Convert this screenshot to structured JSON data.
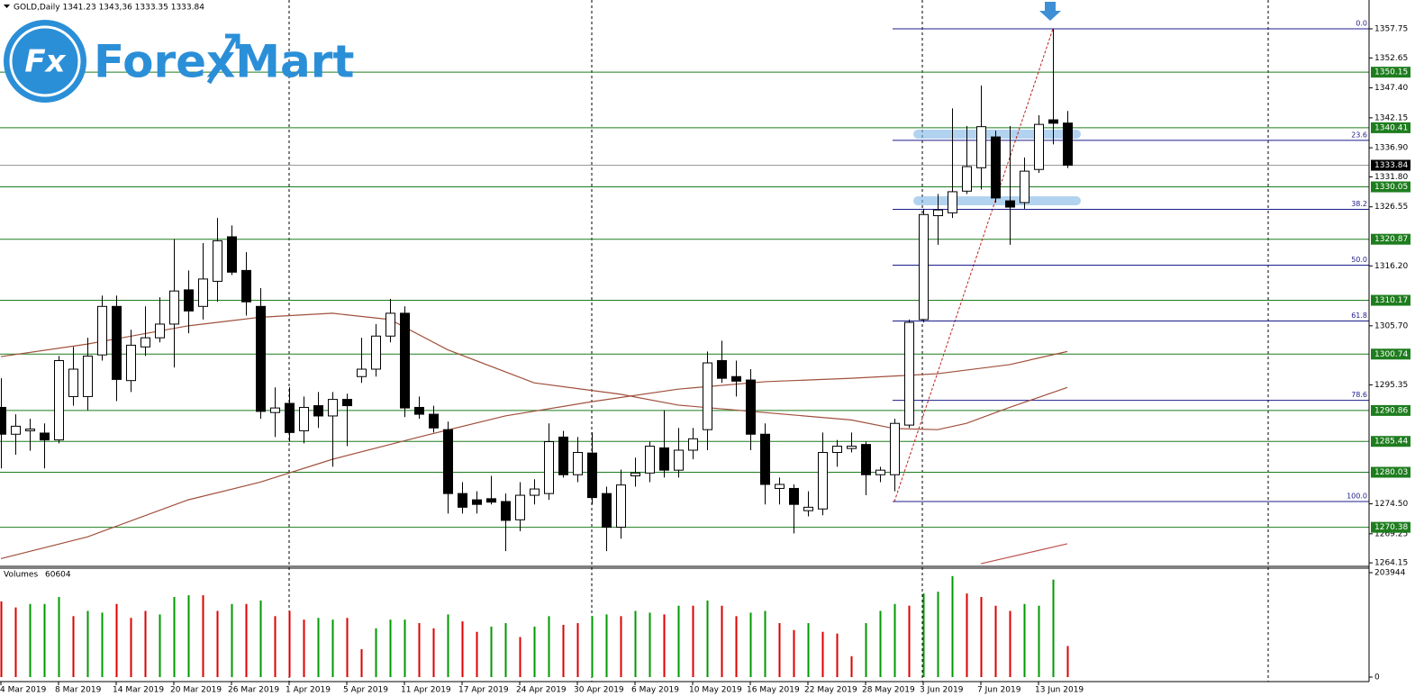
{
  "chart_data": {
    "type": "candlestick",
    "title": "GOLD,Daily  1341.23 1343,36 1333.35 1333.84",
    "logo": {
      "icon": "Fx",
      "text": "ForexMart"
    },
    "categories": [
      "4 Mar 2019",
      null,
      null,
      null,
      "8 Mar 2019",
      null,
      null,
      null,
      "14 Mar 2019",
      null,
      null,
      null,
      "20 Mar 2019",
      null,
      null,
      null,
      "26 Mar 2019",
      null,
      null,
      null,
      "1 Apr 2019",
      null,
      null,
      null,
      "5 Apr 2019",
      null,
      null,
      null,
      "11 Apr 2019",
      null,
      null,
      null,
      "17 Apr 2019",
      null,
      null,
      null,
      "24 Apr 2019",
      null,
      null,
      null,
      "30 Apr 2019",
      null,
      null,
      null,
      "6 May 2019",
      null,
      null,
      null,
      "10 May 2019",
      null,
      null,
      null,
      "16 May 2019",
      null,
      null,
      null,
      "22 May 2019",
      null,
      null,
      null,
      "28 May 2019",
      null,
      null,
      null,
      "3 Jun 2019",
      null,
      null,
      null,
      "7 Jun 2019",
      null,
      null,
      null,
      "13 Jun 2019",
      null,
      null
    ],
    "open": [
      1291.4,
      1286.7,
      1287.3,
      1286.9,
      1285.7,
      1293.3,
      1293.3,
      1300.6,
      1309.1,
      1296.1,
      1302.0,
      1303.6,
      1306.0,
      1312.0,
      1309.1,
      1313.5,
      1321.3,
      1315.4,
      1309.1,
      1290.5,
      1292.1,
      1287.3,
      1291.7,
      1289.9,
      1292.8,
      1296.8,
      1298.1,
      1303.9,
      1307.9,
      1291.4,
      1290.2,
      1287.5,
      1276.3,
      1275.2,
      1275.4,
      1274.9,
      1271.7,
      1276.0,
      1276.3,
      1286.2,
      1279.6,
      1283.4,
      1276.3,
      1270.4,
      1279.4,
      1279.9,
      1284.3,
      1280.4,
      1283.9,
      1287.5,
      1299.6,
      1296.8,
      1296.2,
      1286.7,
      1277.2,
      1277.2,
      1273.3,
      1273.6,
      1283.5,
      1284.2,
      1284.9,
      1279.6,
      1279.6,
      1288.3,
      1306.8,
      1325.0,
      1325.5,
      1329.3,
      1333.4,
      1338.8,
      1327.6,
      1327.3,
      1333.1,
      1341.8,
      1341.23
    ],
    "high": [
      1296.5,
      1290.2,
      1289.4,
      1288.6,
      1300.4,
      1302.0,
      1303.6,
      1311.0,
      1311.0,
      1305.0,
      1309.1,
      1310.7,
      1320.9,
      1315.4,
      1320.2,
      1324.6,
      1323.3,
      1318.6,
      1312.3,
      1294.9,
      1294.9,
      1293.3,
      1294.1,
      1294.1,
      1293.8,
      1303.6,
      1306.0,
      1310.4,
      1309.1,
      1293.3,
      1291.7,
      1288.9,
      1278.3,
      1276.7,
      1279.4,
      1276.3,
      1278.3,
      1278.8,
      1288.6,
      1287.3,
      1286.2,
      1287.0,
      1277.5,
      1280.5,
      1282.6,
      1285.4,
      1290.9,
      1287.8,
      1287.8,
      1301.2,
      1303.1,
      1299.6,
      1298.1,
      1288.6,
      1279.1,
      1277.9,
      1276.7,
      1287.0,
      1285.7,
      1287.0,
      1285.4,
      1281.0,
      1289.4,
      1306.8,
      1326.2,
      1328.8,
      1343.8,
      1340.7,
      1347.8,
      1339.9,
      1340.7,
      1335.2,
      1342.6,
      1357.75,
      1343.36
    ],
    "low": [
      1280.7,
      1283.1,
      1283.8,
      1280.7,
      1285.1,
      1291.7,
      1290.9,
      1299.6,
      1292.5,
      1294.1,
      1300.4,
      1302.8,
      1298.4,
      1304.4,
      1306.8,
      1309.9,
      1314.6,
      1307.5,
      1289.4,
      1286.2,
      1285.4,
      1285.1,
      1287.8,
      1281.0,
      1284.6,
      1295.7,
      1296.8,
      1302.8,
      1289.7,
      1289.4,
      1287.0,
      1272.8,
      1272.8,
      1272.8,
      1274.4,
      1266.2,
      1269.7,
      1274.4,
      1275.2,
      1279.1,
      1278.3,
      1274.4,
      1266.2,
      1268.4,
      1277.5,
      1278.3,
      1279.1,
      1279.1,
      1282.3,
      1283.9,
      1295.7,
      1293.3,
      1283.9,
      1274.4,
      1274.4,
      1269.3,
      1272.3,
      1272.5,
      1281.0,
      1283.5,
      1276.0,
      1278.3,
      1276.7,
      1287.8,
      1306.3,
      1319.9,
      1324.6,
      1328.8,
      1329.6,
      1327.3,
      1319.9,
      1326.2,
      1332.5,
      1337.5,
      1333.35
    ],
    "close": [
      1286.7,
      1288.1,
      1287.6,
      1285.7,
      1299.6,
      1298.1,
      1300.4,
      1309.1,
      1296.3,
      1302.3,
      1303.6,
      1306.0,
      1311.8,
      1308.3,
      1313.9,
      1320.6,
      1315.1,
      1309.9,
      1290.7,
      1291.3,
      1287.0,
      1291.4,
      1289.9,
      1292.8,
      1291.7,
      1298.1,
      1303.9,
      1307.9,
      1291.3,
      1290.2,
      1287.8,
      1276.3,
      1273.9,
      1274.4,
      1274.8,
      1271.6,
      1276.0,
      1277.1,
      1285.4,
      1279.6,
      1283.5,
      1275.6,
      1270.4,
      1277.8,
      1279.9,
      1284.6,
      1280.4,
      1283.9,
      1285.9,
      1299.2,
      1296.5,
      1296.0,
      1286.7,
      1277.9,
      1277.9,
      1274.4,
      1273.9,
      1283.5,
      1284.6,
      1284.6,
      1279.6,
      1280.4,
      1288.6,
      1306.3,
      1325.2,
      1326.0,
      1329.2,
      1333.6,
      1340.6,
      1328.1,
      1326.5,
      1332.8,
      1341.0,
      1341.2,
      1333.84
    ],
    "up_color": "#ffffff",
    "down_color": "#000000",
    "ylim": [
      1263.7,
      1362.8
    ],
    "yticks": [
      1357.75,
      1352.65,
      {
        "value": 1347.4,
        "label": "1347.40"
      },
      1342.15,
      {
        "value": 1336.9,
        "label": "1336.90"
      },
      {
        "value": 1331.8,
        "label": "1331.80"
      },
      1326.55,
      {
        "value": 1316.2,
        "label": "1316.20"
      },
      {
        "value": 1305.7,
        "label": "1305.70"
      },
      1295.35,
      {
        "value": 1274.5,
        "label": "1274.50"
      },
      1269.25,
      1264.15
    ],
    "levels": {
      "values": [
        1350.15,
        1340.41,
        1330.05,
        1320.87,
        1310.17,
        1300.74,
        1290.86,
        1285.44,
        1280.03,
        1270.38
      ],
      "color": "#1e7d1e"
    },
    "moving_averages": [
      {
        "x": [
          0,
          6,
          13,
          18,
          23,
          27,
          31,
          37,
          43,
          47,
          53,
          59,
          62,
          65,
          67,
          70,
          74
        ],
        "values": [
          1300.3,
          1302.5,
          1305.7,
          1307.2,
          1307.9,
          1306.8,
          1301.5,
          1295.7,
          1293.7,
          1291.8,
          1290.5,
          1289.2,
          1287.7,
          1287.5,
          1288.6,
          1291.4,
          1294.9
        ],
        "color": "#a0503c"
      },
      {
        "x": [
          0,
          6,
          13,
          18,
          23,
          29,
          35,
          41,
          47,
          53,
          59,
          65,
          70,
          74
        ],
        "values": [
          1264.9,
          1268.7,
          1275.2,
          1278.3,
          1282.3,
          1286.2,
          1289.9,
          1292.4,
          1294.6,
          1295.9,
          1296.5,
          1297.3,
          1298.9,
          1301.2
        ],
        "color": "#a0503c"
      },
      {
        "x": [
          68,
          74
        ],
        "values": [
          1264.0,
          1267.5
        ],
        "color": "#c0504d"
      }
    ],
    "fibonacci": {
      "x": [
        62,
        73
      ],
      "values": [
        1274.9,
        1357.75
      ],
      "color": "#1c1c8c",
      "trend_color": "#c02020",
      "levels": [
        {
          "value": 0,
          "label": "0.0"
        },
        {
          "value": 23.6,
          "label": "23.6"
        },
        {
          "value": 38.2,
          "label": "38.2"
        },
        {
          "value": 50,
          "label": "50.0"
        },
        {
          "value": 61.8,
          "label": "61.8"
        },
        {
          "value": 78.6,
          "label": "78.6"
        },
        {
          "value": 100,
          "label": "100.0"
        }
      ]
    },
    "volume": {
      "name": "Volumes",
      "values": [
        147900,
        136000,
        142800,
        142800,
        156400,
        119000,
        129200,
        125800,
        142800,
        115600,
        129200,
        122400,
        156400,
        159800,
        159800,
        129200,
        142800,
        142800,
        149600,
        119000,
        129200,
        112200,
        115600,
        112200,
        115600,
        54400,
        95200,
        112200,
        112200,
        105400,
        95200,
        122400,
        108800,
        88400,
        98600,
        105400,
        78200,
        98600,
        119000,
        102000,
        105400,
        119000,
        122400,
        119000,
        129200,
        125800,
        122400,
        139400,
        139400,
        149600,
        139400,
        119000,
        125800,
        129200,
        105400,
        91800,
        105400,
        88400,
        85000,
        40800,
        105400,
        129200,
        142800,
        139400,
        163200,
        166600,
        197200,
        163200,
        156400,
        139400,
        129200,
        142800,
        139400,
        190400,
        60604
      ],
      "colors": [
        "#d00",
        "#d00",
        "#090",
        "#090",
        "#090",
        "#d00",
        "#090",
        "#090",
        "#d00",
        "#d00",
        "#d00",
        "#090",
        "#090",
        "#090",
        "#d00",
        "#d00",
        "#090",
        "#d00",
        "#090",
        "#d00",
        "#d00",
        "#d00",
        "#090",
        "#090",
        "#d00",
        "#d00",
        "#090",
        "#090",
        "#090",
        "#d00",
        "#d00",
        "#090",
        "#d00",
        "#d00",
        "#090",
        "#090",
        "#d00",
        "#090",
        "#090",
        "#d00",
        "#d00",
        "#090",
        "#090",
        "#d00",
        "#090",
        "#090",
        "#d00",
        "#090",
        "#d00",
        "#090",
        "#d00",
        "#d00",
        "#090",
        "#090",
        "#d00",
        "#d00",
        "#090",
        "#d00",
        "#d00",
        "#d00",
        "#090",
        "#090",
        "#090",
        "#d00",
        "#090",
        "#090",
        "#090",
        "#d00",
        "#d00",
        "#d00",
        "#d00",
        "#090",
        "#090",
        "#090",
        "#d00"
      ],
      "ylim": [
        0,
        203944
      ],
      "yticks": [
        0,
        203944
      ]
    }
  }
}
